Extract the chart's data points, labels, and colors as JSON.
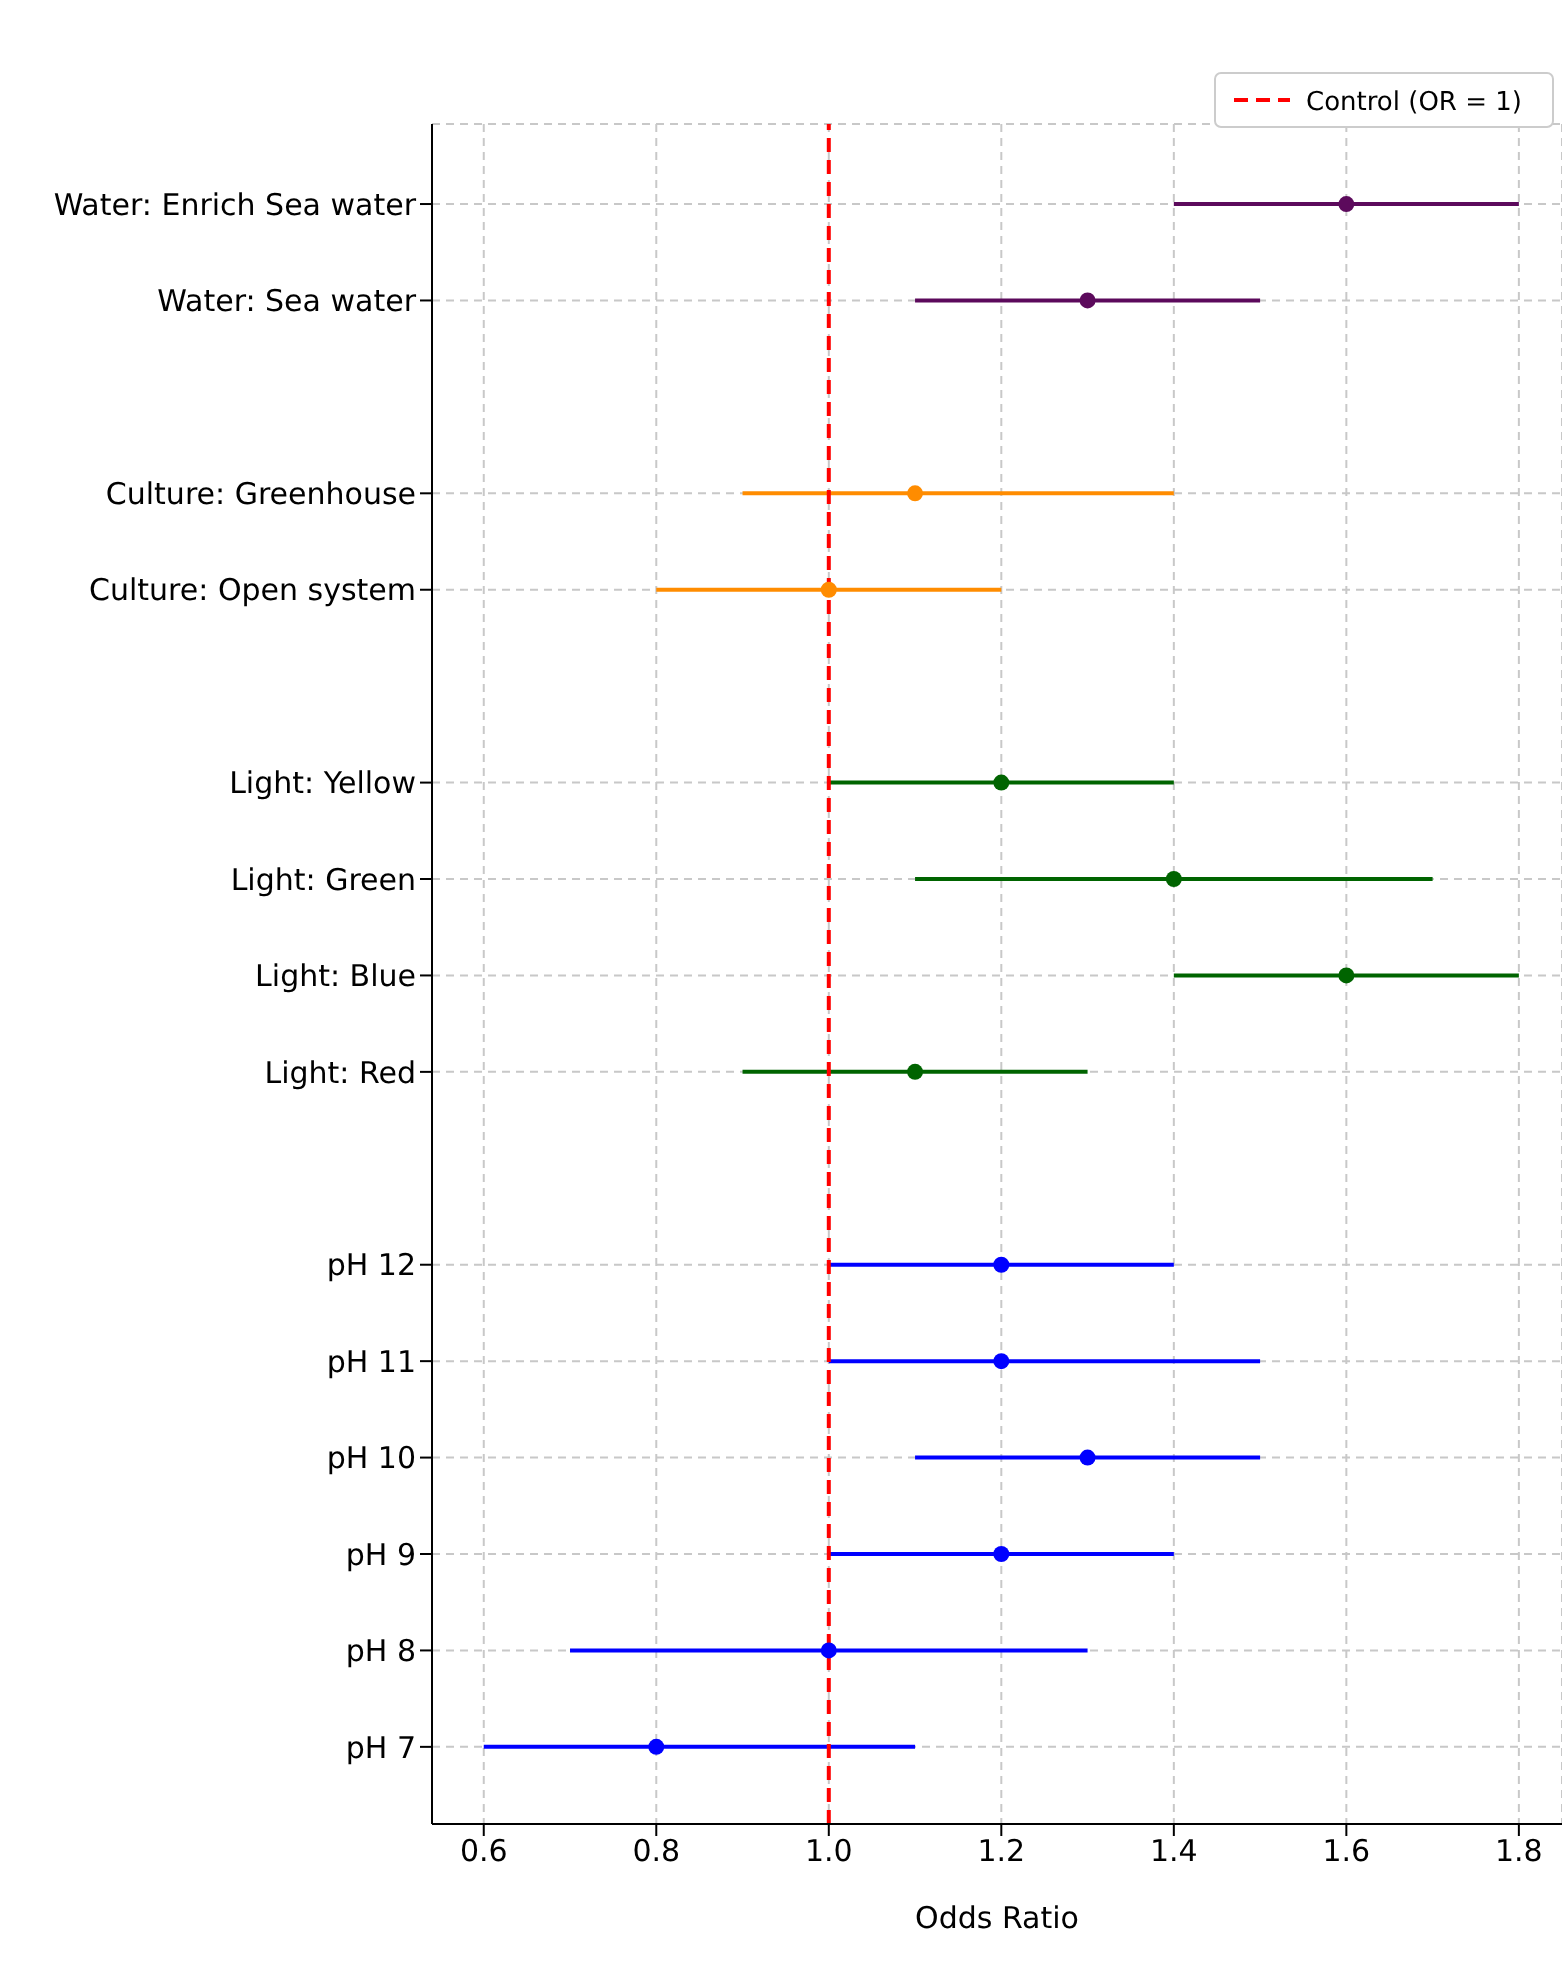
{
  "chart_data": {
    "type": "scatter",
    "orientation": "horizontal",
    "xlabel": "Odds Ratio",
    "categories": [
      "Water: Enrich Sea water",
      "Water: Sea water",
      null,
      "Culture: Greenhouse",
      "Culture: Open system",
      null,
      "Light: Yellow",
      "Light: Green",
      "Light: Blue",
      "Light: Red",
      null,
      "pH 12",
      "pH 11",
      "pH 10",
      "pH 9",
      "pH 8",
      "pH 7"
    ],
    "series": [
      {
        "color": "#5c0a5c",
        "values": [
          1.6,
          1.3,
          null,
          null,
          null,
          null,
          null,
          null,
          null,
          null,
          null,
          null,
          null,
          null,
          null,
          null,
          null
        ],
        "errors": [
          [
            1.4,
            1.8
          ],
          [
            1.1,
            1.5
          ],
          null,
          null,
          null,
          null,
          null,
          null,
          null,
          null,
          null,
          null,
          null,
          null,
          null,
          null,
          null
        ]
      },
      {
        "color": "#ff8c00",
        "values": [
          null,
          null,
          null,
          1.1,
          1.0,
          null,
          null,
          null,
          null,
          null,
          null,
          null,
          null,
          null,
          null,
          null,
          null
        ],
        "errors": [
          null,
          null,
          null,
          [
            0.9,
            1.4
          ],
          [
            0.8,
            1.2
          ],
          null,
          null,
          null,
          null,
          null,
          null,
          null,
          null,
          null,
          null,
          null,
          null
        ]
      },
      {
        "color": "#006400",
        "values": [
          null,
          null,
          null,
          null,
          null,
          null,
          1.2,
          1.4,
          1.6,
          1.1,
          null,
          null,
          null,
          null,
          null,
          null,
          null
        ],
        "errors": [
          null,
          null,
          null,
          null,
          null,
          null,
          [
            1.0,
            1.4
          ],
          [
            1.1,
            1.7
          ],
          [
            1.4,
            1.8
          ],
          [
            0.9,
            1.3
          ],
          null,
          null,
          null,
          null,
          null,
          null,
          null
        ]
      },
      {
        "color": "#0000ff",
        "values": [
          null,
          null,
          null,
          null,
          null,
          null,
          null,
          null,
          null,
          null,
          null,
          1.2,
          1.2,
          1.3,
          1.2,
          1.0,
          0.8
        ],
        "errors": [
          null,
          null,
          null,
          null,
          null,
          null,
          null,
          null,
          null,
          null,
          null,
          [
            1.0,
            1.4
          ],
          [
            1.0,
            1.5
          ],
          [
            1.1,
            1.5
          ],
          [
            1.0,
            1.4
          ],
          [
            0.7,
            1.3
          ],
          [
            0.6,
            1.1
          ]
        ]
      }
    ],
    "xlim": [
      0.54,
      1.85
    ],
    "xticks": [
      0.6,
      0.8,
      {
        "value": 1,
        "label": "1.0"
      },
      1.2,
      1.4,
      1.6,
      1.8
    ],
    "ref_lines": [
      {
        "axis": "x",
        "value": 1,
        "label": "Control (OR = 1)",
        "color": "#ff0000",
        "line_style": "dashed"
      }
    ],
    "grid": true,
    "legend": "top right",
    "marker": "circle"
  }
}
